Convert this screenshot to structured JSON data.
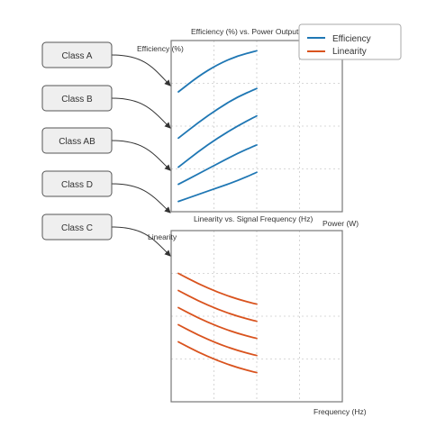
{
  "classes": [
    {
      "label": "Class A"
    },
    {
      "label": "Class B"
    },
    {
      "label": "Class AB"
    },
    {
      "label": "Class D"
    },
    {
      "label": "Class C"
    }
  ],
  "legend": {
    "efficiency_label": "Efficiency",
    "linearity_label": "Linearity"
  },
  "colors": {
    "efficiency": "#1f77b4",
    "linearity": "#d9531e",
    "box_fill": "#efefef",
    "box_stroke": "#555555",
    "plot_frame": "#777777",
    "grid": "#cccccc",
    "connector": "#333333"
  },
  "chart_data": [
    {
      "type": "line",
      "title": "Efficiency (%) vs. Power Output",
      "xlabel": "Power (W)",
      "ylabel": "Efficiency (%)",
      "grid": true,
      "legend_position": "top-right",
      "series": [
        {
          "name": "Efficiency",
          "x": [
            0,
            0.25,
            0.5,
            0.75,
            1
          ],
          "y": [
            0.7,
            0.79,
            0.86,
            0.91,
            0.94
          ]
        },
        {
          "name": "Efficiency",
          "x": [
            0,
            0.25,
            0.5,
            0.75,
            1
          ],
          "y": [
            0.43,
            0.52,
            0.6,
            0.67,
            0.72
          ]
        },
        {
          "name": "Efficiency",
          "x": [
            0,
            0.25,
            0.5,
            0.75,
            1
          ],
          "y": [
            0.26,
            0.35,
            0.43,
            0.5,
            0.56
          ]
        },
        {
          "name": "Efficiency",
          "x": [
            0,
            0.25,
            0.5,
            0.75,
            1
          ],
          "y": [
            0.16,
            0.22,
            0.28,
            0.34,
            0.39
          ]
        },
        {
          "name": "Efficiency",
          "x": [
            0,
            0.25,
            0.5,
            0.75,
            1
          ],
          "y": [
            0.06,
            0.1,
            0.14,
            0.18,
            0.23
          ]
        }
      ]
    },
    {
      "type": "line",
      "title": "Linearity vs. Signal Frequency (Hz)",
      "xlabel": "Frequency (Hz)",
      "ylabel": "Linearity",
      "grid": true,
      "series": [
        {
          "name": "Linearity",
          "x": [
            0,
            0.25,
            0.5,
            0.75,
            1
          ],
          "y": [
            0.75,
            0.69,
            0.64,
            0.6,
            0.57
          ]
        },
        {
          "name": "Linearity",
          "x": [
            0,
            0.25,
            0.5,
            0.75,
            1
          ],
          "y": [
            0.65,
            0.59,
            0.54,
            0.5,
            0.47
          ]
        },
        {
          "name": "Linearity",
          "x": [
            0,
            0.25,
            0.5,
            0.75,
            1
          ],
          "y": [
            0.55,
            0.49,
            0.44,
            0.4,
            0.37
          ]
        },
        {
          "name": "Linearity",
          "x": [
            0,
            0.25,
            0.5,
            0.75,
            1
          ],
          "y": [
            0.45,
            0.39,
            0.34,
            0.3,
            0.27
          ]
        },
        {
          "name": "Linearity",
          "x": [
            0,
            0.25,
            0.5,
            0.75,
            1
          ],
          "y": [
            0.35,
            0.29,
            0.24,
            0.2,
            0.17
          ]
        }
      ]
    }
  ]
}
